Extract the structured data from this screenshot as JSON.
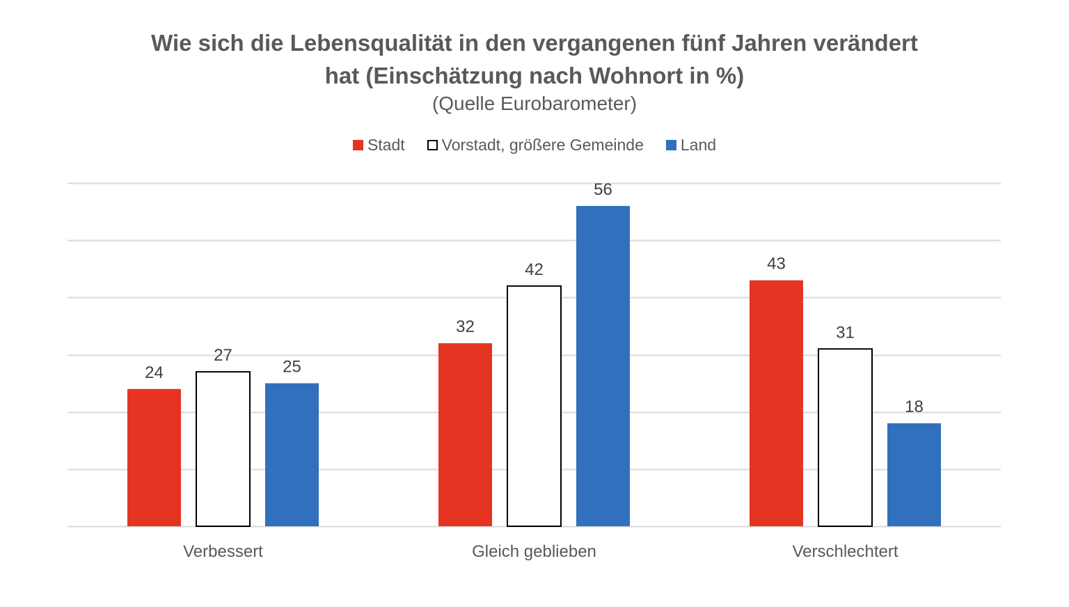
{
  "chart_data": {
    "type": "bar",
    "title_lines": [
      "Wie sich die Lebensqualität in den vergangenen fünf Jahren verändert",
      "hat (Einschätzung nach Wohnort in %)"
    ],
    "subtitle": "(Quelle Eurobarometer)",
    "categories": [
      "Verbessert",
      "Gleich geblieben",
      "Verschlechtert"
    ],
    "series": [
      {
        "name": "Stadt",
        "values": [
          24,
          32,
          43
        ],
        "fill": "#e53422",
        "stroke": "none"
      },
      {
        "name": "Vorstadt, größere Gemeinde",
        "values": [
          27,
          42,
          31
        ],
        "fill": "#ffffff",
        "stroke": "#000000"
      },
      {
        "name": "Land",
        "values": [
          25,
          56,
          18
        ],
        "fill": "#3070bd",
        "stroke": "none"
      }
    ],
    "ylim": [
      0,
      60
    ],
    "grid": true,
    "legend_position": "top-center",
    "show_data_labels": true,
    "colors": {
      "title": "#595959",
      "gridline": "#d9d9d9",
      "data_label": "#404040",
      "category_label": "#595959"
    }
  }
}
